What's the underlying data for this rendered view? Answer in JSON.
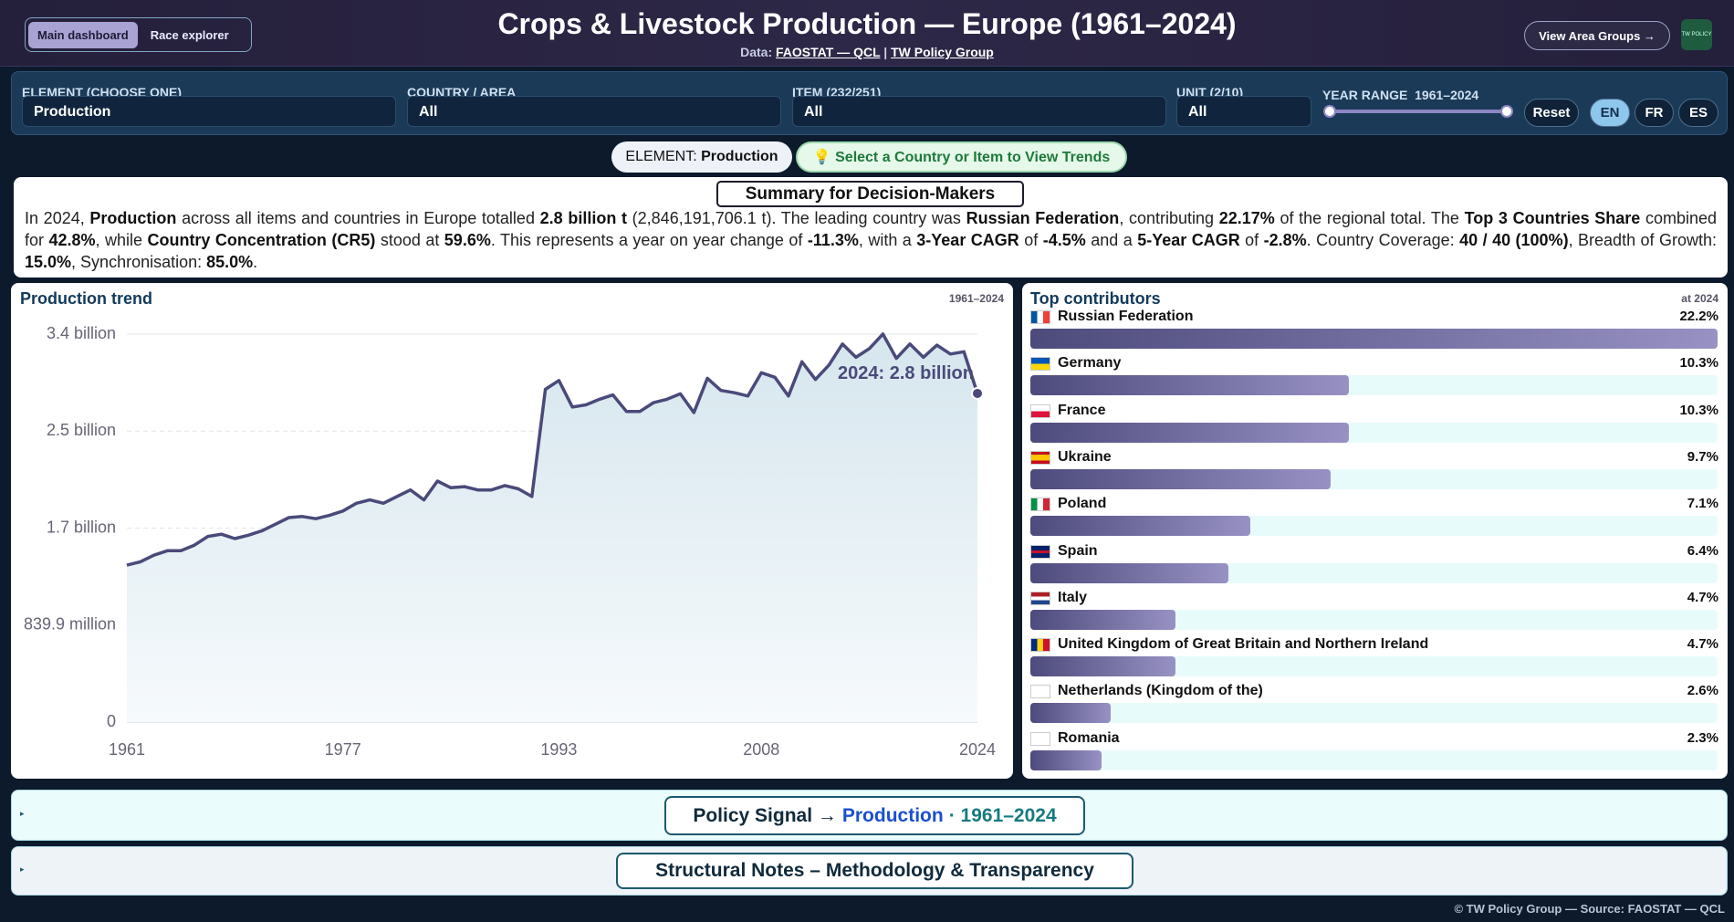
{
  "header": {
    "tabs": [
      "Main dashboard",
      "Race explorer"
    ],
    "title": "Crops & Livestock Production — Europe (1961–2024)",
    "data_label": "Data:",
    "source_link": "FAOSTAT — QCL",
    "separator": "|",
    "org_link": "TW Policy Group",
    "button": "View Area Groups →",
    "logo": "TW POLICY"
  },
  "filters": {
    "fields": [
      {
        "label": "ELEMENT (CHOOSE ONE)",
        "value": "Production"
      },
      {
        "label": "COUNTRY / AREA",
        "value": "All"
      },
      {
        "label": "ITEM (232/251)",
        "value": "All"
      },
      {
        "label": "UNIT (2/10)",
        "value": "All"
      }
    ],
    "year_range_label": "YEAR RANGE",
    "year_range": "1961–2024",
    "reset": "Reset",
    "languages": [
      "EN",
      "FR",
      "ES"
    ]
  },
  "chips": {
    "element_label": "ELEMENT:",
    "element_value": "Production",
    "hint": "💡 Select a Country or Item to View Trends"
  },
  "summary": {
    "heading": "Summary for Decision-Makers",
    "parts": [
      {
        "text": "In 2024, "
      },
      {
        "text": "Production",
        "bold": true
      },
      {
        "text": " across all items and countries in Europe totalled "
      },
      {
        "text": "2.8 billion t",
        "bold": true
      },
      {
        "text": " (2,846,191,706.1 t). The leading country was "
      },
      {
        "text": "Russian Federation",
        "bold": true
      },
      {
        "text": ", contributing "
      },
      {
        "text": "22.17%",
        "bold": true
      },
      {
        "text": " of the regional total. The "
      },
      {
        "text": "Top 3 Countries Share",
        "bold": true
      },
      {
        "text": " combined for "
      },
      {
        "text": "42.8%",
        "bold": true
      },
      {
        "text": ", while "
      },
      {
        "text": "Country Concentration (CR5)",
        "bold": true
      },
      {
        "text": " stood at "
      },
      {
        "text": "59.6%",
        "bold": true
      },
      {
        "text": ". This represents a year on year change of "
      },
      {
        "text": "-11.3%",
        "bold": true
      },
      {
        "text": ", with a "
      },
      {
        "text": "3-Year CAGR",
        "bold": true
      },
      {
        "text": " of "
      },
      {
        "text": "-4.5%",
        "bold": true
      },
      {
        "text": " and a "
      },
      {
        "text": "5-Year CAGR",
        "bold": true
      },
      {
        "text": " of "
      },
      {
        "text": "-2.8%",
        "bold": true
      },
      {
        "text": ". Country Coverage: "
      },
      {
        "text": "40 / 40 (100%)",
        "bold": true
      },
      {
        "text": ", Breadth of Growth: "
      },
      {
        "text": "15.0%",
        "bold": true
      },
      {
        "text": ", Synchronisation: "
      },
      {
        "text": "85.0%",
        "bold": true
      },
      {
        "text": "."
      }
    ]
  },
  "chart_data": [
    {
      "type": "line",
      "title": "Production trend",
      "range_label": "1961–2024",
      "annotation": "2024: 2.8 billion",
      "color": "#4a4a7a",
      "grid": true,
      "x": [
        1961,
        1962,
        1963,
        1964,
        1965,
        1966,
        1967,
        1968,
        1969,
        1970,
        1971,
        1972,
        1973,
        1974,
        1975,
        1976,
        1977,
        1978,
        1979,
        1980,
        1981,
        1982,
        1983,
        1984,
        1985,
        1986,
        1987,
        1988,
        1989,
        1990,
        1991,
        1992,
        1993,
        1994,
        1995,
        1996,
        1997,
        1998,
        1999,
        2000,
        2001,
        2002,
        2003,
        2004,
        2005,
        2006,
        2007,
        2008,
        2009,
        2010,
        2011,
        2012,
        2013,
        2014,
        2015,
        2016,
        2017,
        2018,
        2019,
        2020,
        2021,
        2022,
        2023,
        2024
      ],
      "values": [
        1359,
        1388,
        1445,
        1484,
        1484,
        1532,
        1608,
        1627,
        1589,
        1618,
        1656,
        1713,
        1771,
        1780,
        1761,
        1790,
        1828,
        1895,
        1924,
        1895,
        1953,
        2010,
        1924,
        2087,
        2029,
        2039,
        2010,
        2010,
        2048,
        2020,
        1953,
        2881,
        2958,
        2728,
        2747,
        2795,
        2833,
        2690,
        2690,
        2766,
        2795,
        2843,
        2680,
        2977,
        2872,
        2852,
        2824,
        3025,
        2986,
        2824,
        3120,
        2967,
        3092,
        3274,
        3159,
        3235,
        3360,
        3149,
        3274,
        3159,
        3264,
        3187,
        3207,
        2846.19
      ],
      "xlim": [
        1961,
        2024
      ],
      "xticks": [
        1961,
        1977,
        1993,
        2008,
        2024
      ],
      "ylim": [
        0,
        3359.6
      ],
      "yticks": [
        0,
        {
          "value": 839.9,
          "label": "839.9 million"
        },
        {
          "value": 1679.8,
          "label": "1.7 billion"
        },
        {
          "value": 2519.7,
          "label": "2.5 billion"
        },
        {
          "value": 3359.6,
          "label": "3.4 billion"
        }
      ]
    },
    {
      "type": "bar",
      "orientation": "horizontal",
      "title": "Top contributors",
      "range_label": "at 2024",
      "categories": [
        "Russian Federation",
        "Germany",
        "France",
        "Ukraine",
        "Poland",
        "Spain",
        "Italy",
        "United Kingdom of Great Britain and Northern Ireland",
        "Netherlands (Kingdom of the)",
        "Romania"
      ],
      "values": [
        22.2,
        10.3,
        10.3,
        9.7,
        7.1,
        6.4,
        4.7,
        4.7,
        2.6,
        2.3
      ],
      "value_labels": [
        "22.2%",
        "10.3%",
        "10.3%",
        "9.7%",
        "7.1%",
        "6.4%",
        "4.7%",
        "4.7%",
        "2.6%",
        "2.3%"
      ],
      "xlim": [
        0,
        22.2
      ]
    }
  ],
  "panels": {
    "policy": {
      "prefix": "Policy Signal →",
      "element": "Production",
      "range": "· 1961–2024"
    },
    "notes": "Structural Notes – Methodology & Transparency"
  },
  "footer": "© TW Policy Group — Source: FAOSTAT — QCL"
}
